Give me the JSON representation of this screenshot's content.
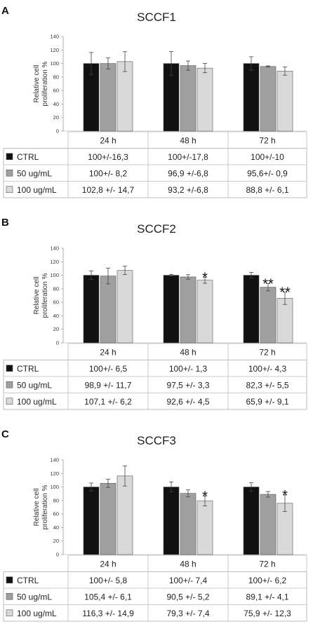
{
  "chart_data": [
    {
      "type": "bar",
      "panel": "A",
      "title": "SCCF1",
      "ylabel": "Relative cell proliferation %",
      "ylim": [
        0,
        140
      ],
      "yticks": [
        0,
        20,
        40,
        60,
        80,
        100,
        120,
        140
      ],
      "categories": [
        "24 h",
        "48 h",
        "72 h"
      ],
      "series": [
        {
          "name": "CTRL",
          "color": "#111111",
          "values": [
            100,
            100,
            100
          ],
          "errors": [
            16.3,
            17.8,
            10
          ],
          "labels": [
            "100+/-16,3",
            "100+/-17,8",
            "100+/-10"
          ]
        },
        {
          "name": "50 ug/mL",
          "color": "#a0a0a0",
          "values": [
            100,
            96.9,
            95.6
          ],
          "errors": [
            8.2,
            6.8,
            0.9
          ],
          "labels": [
            "100+/- 8,2",
            "96,9 +/-6,8",
            "95,6+/- 0,9"
          ]
        },
        {
          "name": "100 ug/mL",
          "color": "#d9d9d9",
          "values": [
            102.8,
            93.2,
            88.8
          ],
          "errors": [
            14.7,
            6.8,
            6.1
          ],
          "labels": [
            "102,8 +/- 14,7",
            "93,2 +/-6,8",
            "88,8 +/- 6,1"
          ]
        }
      ],
      "significance": []
    },
    {
      "type": "bar",
      "panel": "B",
      "title": "SCCF2",
      "ylabel": "Relative cell proliferation %",
      "ylim": [
        0,
        140
      ],
      "yticks": [
        0,
        20,
        40,
        60,
        80,
        100,
        120,
        140
      ],
      "categories": [
        "24 h",
        "48 h",
        "72 h"
      ],
      "series": [
        {
          "name": "CTRL",
          "color": "#111111",
          "values": [
            100,
            100,
            100
          ],
          "errors": [
            6.5,
            1.3,
            4.3
          ],
          "labels": [
            "100+/- 6,5",
            "100+/- 1,3",
            "100+/- 4,3"
          ]
        },
        {
          "name": "50 ug/mL",
          "color": "#a0a0a0",
          "values": [
            98.9,
            97.5,
            82.3
          ],
          "errors": [
            11.7,
            3.3,
            5.5
          ],
          "labels": [
            "98,9 +/- 11,7",
            "97,5 +/- 3,3",
            "82,3 +/- 5,5"
          ]
        },
        {
          "name": "100 ug/mL",
          "color": "#d9d9d9",
          "values": [
            107.1,
            92.6,
            65.9
          ],
          "errors": [
            6.2,
            4.5,
            9.1
          ],
          "labels": [
            "107,1 +/- 6,2",
            "92,6 +/- 4,5",
            "65,9 +/- 9,1"
          ]
        }
      ],
      "significance": [
        {
          "category": 1,
          "series": 2,
          "mark": "*"
        },
        {
          "category": 2,
          "series": 1,
          "mark": "**"
        },
        {
          "category": 2,
          "series": 2,
          "mark": "**"
        }
      ]
    },
    {
      "type": "bar",
      "panel": "C",
      "title": "SCCF3",
      "ylabel": "Relative cell proliferation %",
      "ylim": [
        0,
        140
      ],
      "yticks": [
        0,
        20,
        40,
        60,
        80,
        100,
        120,
        140
      ],
      "categories": [
        "24 h",
        "48 h",
        "72 h"
      ],
      "series": [
        {
          "name": "CTRL",
          "color": "#111111",
          "values": [
            100,
            100,
            100
          ],
          "errors": [
            5.8,
            7.4,
            6.2
          ],
          "labels": [
            "100+/- 5,8",
            "100+/- 7,4",
            "100+/- 6,2"
          ]
        },
        {
          "name": "50 ug/mL",
          "color": "#a0a0a0",
          "values": [
            105.4,
            90.5,
            89.1
          ],
          "errors": [
            6.1,
            5.2,
            4.1
          ],
          "labels": [
            "105,4 +/- 6,1",
            "90,5 +/- 5,2",
            "89,1 +/- 4,1"
          ]
        },
        {
          "name": "100 ug/mL",
          "color": "#d9d9d9",
          "values": [
            116.3,
            79.3,
            75.9
          ],
          "errors": [
            14.9,
            7.4,
            12.3
          ],
          "labels": [
            "116,3 +/- 14,9",
            "79,3 +/- 7,4",
            "75,9 +/- 12,3"
          ]
        }
      ],
      "significance": [
        {
          "category": 1,
          "series": 2,
          "mark": "*"
        },
        {
          "category": 2,
          "series": 2,
          "mark": "*"
        }
      ]
    }
  ]
}
